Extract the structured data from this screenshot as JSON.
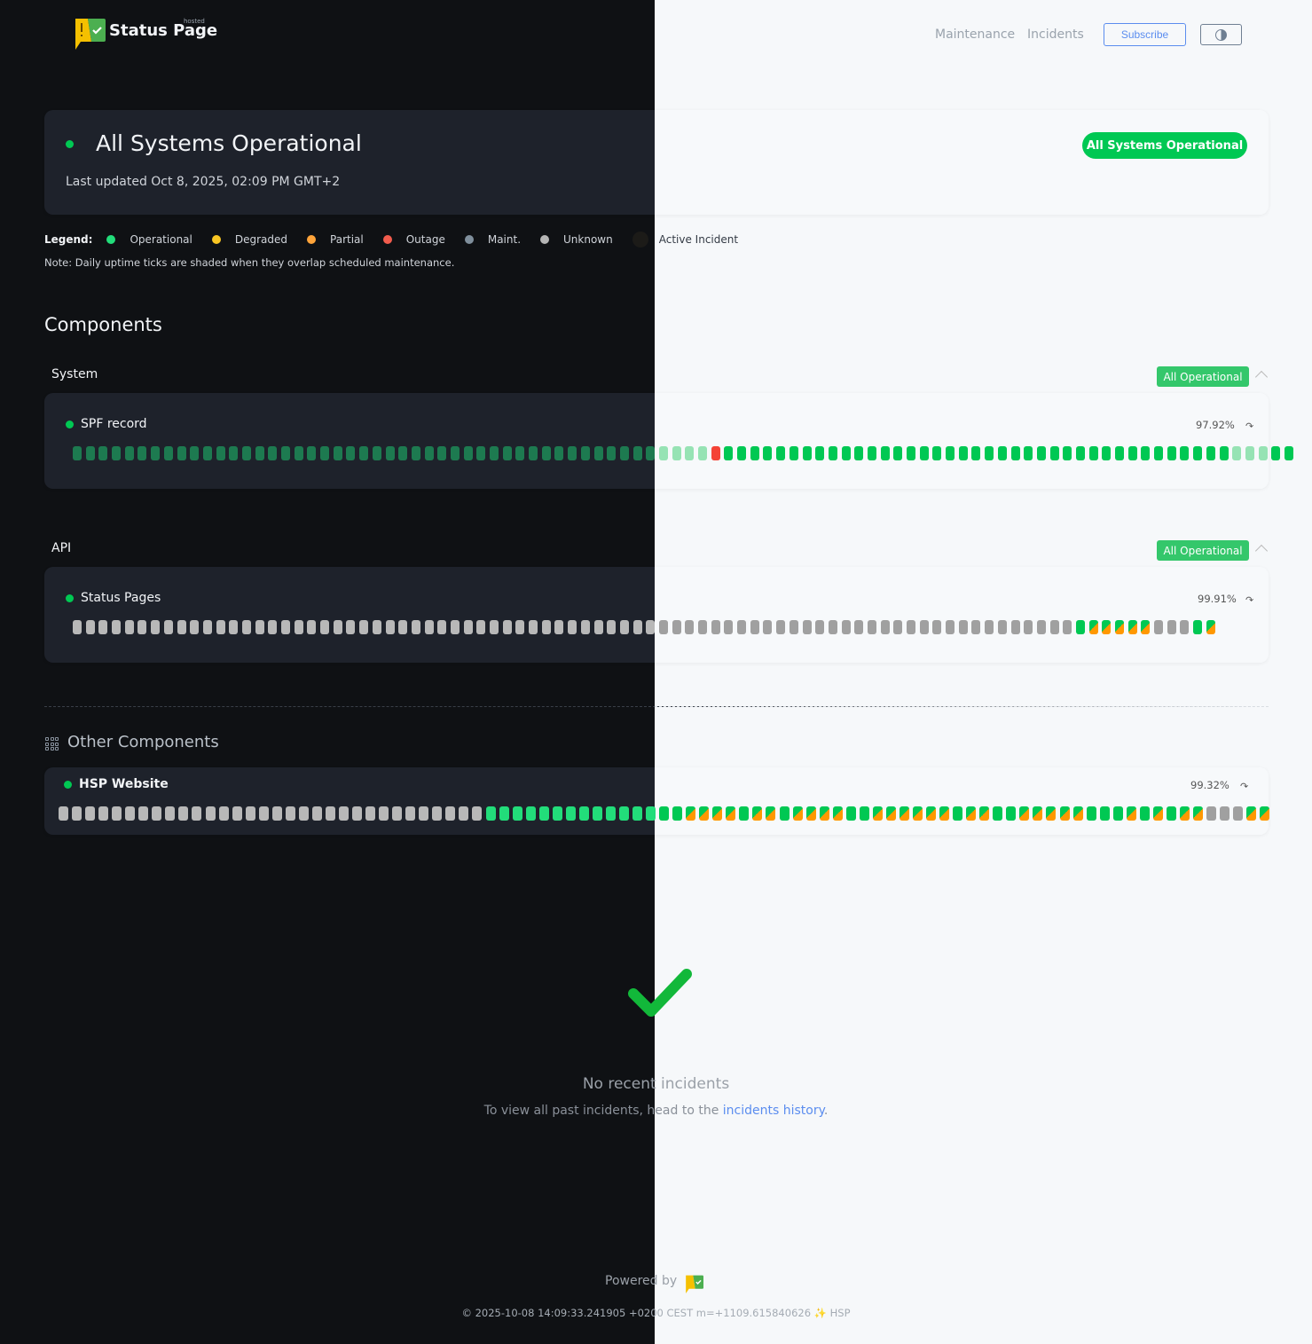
{
  "header": {
    "brand": "Status Page",
    "brand_tag": "hosted",
    "nav": [
      "Maintenance",
      "Incidents"
    ],
    "subscribe": "Subscribe",
    "theme_icon": "half-circle-contrast-icon"
  },
  "hero": {
    "title": "All Systems Operational",
    "updated": "Last updated Oct 8, 2025, 02:09 PM GMT+2",
    "badge": "All Systems Operational"
  },
  "legend": {
    "label": "Legend:",
    "items": [
      {
        "label": "Operational",
        "color": "#22dd7a"
      },
      {
        "label": "Degraded",
        "color": "#f9c623"
      },
      {
        "label": "Partial",
        "color": "#ffa43a"
      },
      {
        "label": "Outage",
        "color": "#f25c4d"
      },
      {
        "label": "Maint.",
        "color": "#7f8f9c"
      },
      {
        "label": "Unknown",
        "color": "#b5b5b5"
      },
      {
        "label": "Active Incident",
        "color": "#1c1b18"
      }
    ],
    "note": "Note: Daily uptime ticks are shaded when they overlap scheduled maintenance."
  },
  "components_title": "Components",
  "groups": [
    {
      "name": "System",
      "badge": "All Operational",
      "component": {
        "name": "SPF record",
        "uptime": "97.92%",
        "ticks": "sssssssssssssssssssssssssssssssssssssssssssssssssrooooooooooooooooooooooooooooooooooooooosssoo"
      }
    },
    {
      "name": "API",
      "badge": "All Operational",
      "component": {
        "name": "Status Pages",
        "uptime": "99.91%",
        "ticks": "xxxxxxxxxxxxxxxxxxxxxxxxxxxxxxxxxxxxxxxxxxxxxxxxxxxxxxxxxxxxxxxxxxxxxxxxxxxxxopppppxxxop"
      }
    }
  ],
  "other": {
    "title": "Other Components",
    "component": {
      "name": "HSP Website",
      "uptime": "99.32%",
      "ticks": "xxxxxxxxxxxxxxxxxxxxxxxxxxxxxxxxoooooooooooooooppppoppoppppooppppppoppoopppppooopopoppxxxpp"
    }
  },
  "tick_legend": {
    "o": "operational",
    "s": "operational (maintenance-shaded)",
    "x": "unknown",
    "r": "outage",
    "p": "operational/partial"
  },
  "incidents": {
    "title": "No recent incidents",
    "text": "To view all past incidents, head to the ",
    "link": "incidents history",
    "end": "."
  },
  "footer": {
    "powered": "Powered by",
    "stamp": "© 2025-10-08 14:09:33.241905 +0200 CEST m=+1109.615840626 ✨ HSP"
  }
}
